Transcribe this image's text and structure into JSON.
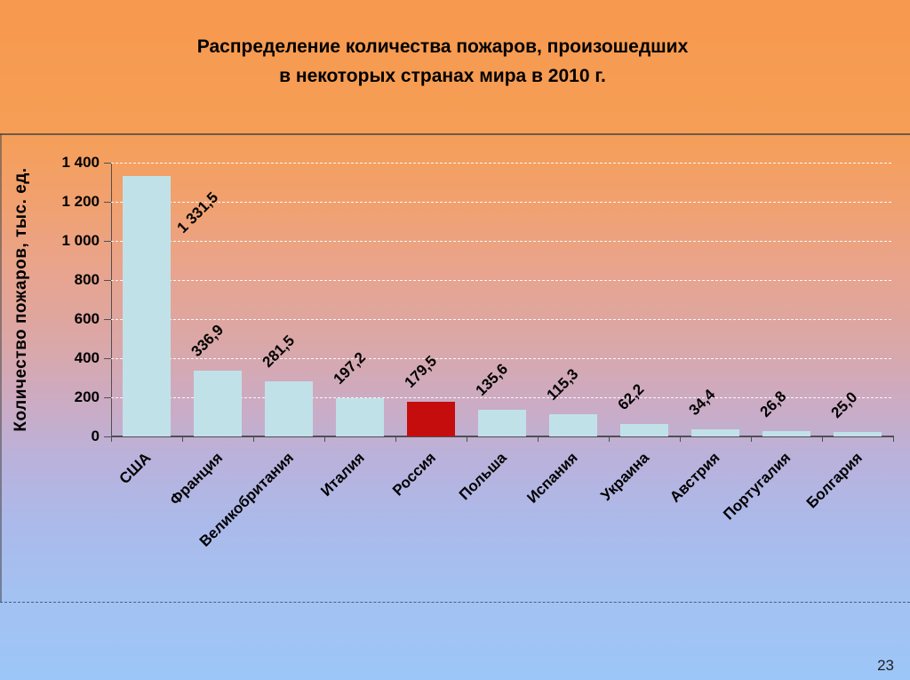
{
  "slide": {
    "title_line1": "Распределение количества пожаров, произошедших",
    "title_line2": "в некоторых странах мира в 2010 г.",
    "page_number": "23"
  },
  "chart_data": {
    "type": "bar",
    "title": "Распределение количества пожаров, произошедших в некоторых странах мира в 2010 г.",
    "xlabel": "",
    "ylabel": "Количество пожаров, тыс. ед.",
    "categories": [
      "США",
      "Франция",
      "Великобритания",
      "Италия",
      "Россия",
      "Польша",
      "Испания",
      "Украина",
      "Австрия",
      "Португалия",
      "Болгария"
    ],
    "values": [
      1331.5,
      336.9,
      281.5,
      197.2,
      179.5,
      135.6,
      115.3,
      62.2,
      34.4,
      26.8,
      25.0
    ],
    "value_labels": [
      "1 331,5",
      "336,9",
      "281,5",
      "197,2",
      "179,5",
      "135,6",
      "115,3",
      "62,2",
      "34,4",
      "26,8",
      "25,0"
    ],
    "ylim": [
      0,
      1400
    ],
    "ytick_interval": 200,
    "ytick_labels": [
      "0",
      "200",
      "400",
      "600",
      "800",
      "1 000",
      "1 200",
      "1 400"
    ],
    "grid": "horizontal white dashed",
    "legend": "none",
    "bar_color": "#c1e1e8",
    "highlight": {
      "index": 4,
      "category": "Россия",
      "color": "#c50d0d"
    }
  },
  "colors": {
    "axis": "#4f4f52",
    "gridline": "#ffffff",
    "title_text": "#000000",
    "bg_top": "#f7994e",
    "bg_bottom": "#9cc6f8"
  }
}
